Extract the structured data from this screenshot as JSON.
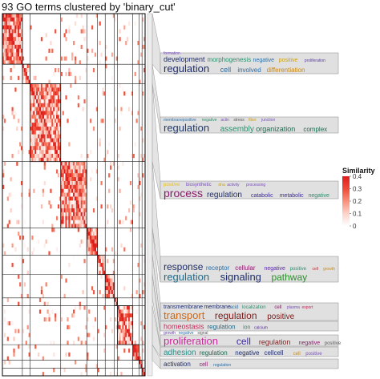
{
  "title": "93 GO terms clustered by 'binary_cut'",
  "chart_data": {
    "type": "heatmap",
    "title": "93 GO terms clustered by 'binary_cut'",
    "n_terms": 93,
    "cluster_sizes": [
      13,
      5,
      20,
      17,
      7,
      5,
      6,
      2,
      10,
      4,
      2,
      2
    ],
    "legend": {
      "title": "Similarity",
      "ticks": [
        "0.4",
        "0.3",
        "0.2",
        "0.1",
        "0"
      ],
      "range": [
        0,
        0.4
      ],
      "colors": [
        "#ffffff",
        "#fcd2c9",
        "#f8907a",
        "#ef4a36",
        "#dd1d1d"
      ],
      "placement": "right"
    },
    "cluster_density": [
      0.55,
      0.25,
      0.45,
      0.5,
      0.55,
      0.3,
      0.5,
      0.3,
      0.45,
      0.5,
      0.4,
      0.3
    ],
    "background_density": 0.05
  },
  "wordclouds": [
    {
      "lines": [
        [
          {
            "w": "formation",
            "c": "#7a4fbf",
            "s": 5
          }
        ],
        [
          {
            "w": "development",
            "c": "#1f2d6b",
            "s": 9
          },
          {
            "w": "morphogenesis",
            "c": "#2a8f6e",
            "s": 8
          },
          {
            "w": "negative",
            "c": "#2a6fa8",
            "s": 7
          },
          {
            "w": "positive",
            "c": "#c9a11a",
            "s": 7
          },
          {
            "w": "proliferation",
            "c": "#5a3aa0",
            "s": 5
          }
        ],
        [
          {
            "w": "regulation",
            "c": "#1f2d6b",
            "s": 13
          },
          {
            "w": "cell",
            "c": "#2a6fa8",
            "s": 9
          },
          {
            "w": "involved",
            "c": "#2a6fa8",
            "s": 8
          },
          {
            "w": "differentiation",
            "c": "#c98a1a",
            "s": 8
          }
        ]
      ]
    },
    {
      "lines": [
        [
          {
            "w": "membrane",
            "c": "#2a6fa8",
            "s": 5
          },
          {
            "w": "positive",
            "c": "#2a6fa8",
            "s": 5
          },
          {
            "w": "negative",
            "c": "#2a8f6e",
            "s": 5
          },
          {
            "w": "actin",
            "c": "#7a4fbf",
            "s": 5
          },
          {
            "w": "stress",
            "c": "#555555",
            "s": 5
          },
          {
            "w": "fiber",
            "c": "#c9a11a",
            "s": 5
          },
          {
            "w": "junction",
            "c": "#7a4fbf",
            "s": 5
          }
        ],
        [
          {
            "w": "regulation",
            "c": "#1f3a6b",
            "s": 13
          },
          {
            "w": "assembly",
            "c": "#2a8f6e",
            "s": 10
          },
          {
            "w": "organization",
            "c": "#1f6b4f",
            "s": 9
          },
          {
            "w": "complex",
            "c": "#1f6b4f",
            "s": 8
          }
        ]
      ]
    },
    {
      "lines": [
        [
          {
            "w": "positive",
            "c": "#e8c21a",
            "s": 6
          },
          {
            "w": "biosynthetic",
            "c": "#7a4fbf",
            "s": 6
          },
          {
            "w": "dna",
            "c": "#c9a11a",
            "s": 5
          },
          {
            "w": "activity",
            "c": "#7a4fbf",
            "s": 5
          },
          {
            "w": "processing",
            "c": "#7a4fbf",
            "s": 5
          }
        ],
        [
          {
            "w": "process",
            "c": "#8a1a6b",
            "s": 14
          },
          {
            "w": "regulation",
            "c": "#1f2d6b",
            "s": 10
          },
          {
            "w": "catabolic",
            "c": "#3a2aa0",
            "s": 7
          },
          {
            "w": "metabolic",
            "c": "#3a2aa0",
            "s": 7
          },
          {
            "w": "negative",
            "c": "#2a8f6e",
            "s": 7
          }
        ]
      ]
    },
    {
      "lines": [
        [
          {
            "w": "response",
            "c": "#1f2d6b",
            "s": 12
          },
          {
            "w": "receptor",
            "c": "#2a6fa8",
            "s": 8
          },
          {
            "w": "cellular",
            "c": "#8a1a6b",
            "s": 8
          },
          {
            "w": "negative",
            "c": "#5a2aa0",
            "s": 7
          },
          {
            "w": "positive",
            "c": "#2a8f6e",
            "s": 6
          },
          {
            "w": "cell",
            "c": "#c92a2a",
            "s": 5
          },
          {
            "w": "growth",
            "c": "#c98a1a",
            "s": 5
          }
        ],
        [
          {
            "w": "regulation",
            "c": "#1f6b8a",
            "s": 13
          },
          {
            "w": "signaling",
            "c": "#1f2d6b",
            "s": 13
          },
          {
            "w": "pathway",
            "c": "#2a8f2a",
            "s": 12
          }
        ]
      ]
    },
    {
      "lines": [
        [
          {
            "w": "transmembrane",
            "c": "#1f2d6b",
            "s": 7
          },
          {
            "w": "membrane",
            "c": "#1f2d6b",
            "s": 7
          },
          {
            "w": "acid",
            "c": "#2a6fa8",
            "s": 6
          },
          {
            "w": "localization",
            "c": "#2a8f6e",
            "s": 6
          },
          {
            "w": "cell",
            "c": "#8a1a6b",
            "s": 6
          },
          {
            "w": "plasma",
            "c": "#7a4fbf",
            "s": 5
          },
          {
            "w": "export",
            "c": "#c92a5a",
            "s": 5
          }
        ],
        [
          {
            "w": "transport",
            "c": "#c96a1a",
            "s": 13
          },
          {
            "w": "regulation",
            "c": "#7a1a1a",
            "s": 12
          },
          {
            "w": "positive",
            "c": "#7a1a1a",
            "s": 10
          }
        ]
      ]
    },
    {
      "lines": [
        [
          {
            "w": "homeostasis",
            "c": "#c92a5a",
            "s": 9
          },
          {
            "w": "regulation",
            "c": "#1f6b8a",
            "s": 8
          },
          {
            "w": "ion",
            "c": "#2a8f6e",
            "s": 7
          },
          {
            "w": "calcium",
            "c": "#5a2aa0",
            "s": 5
          }
        ]
      ]
    },
    {
      "lines": [
        [
          {
            "w": "growth",
            "c": "#5a3aa0",
            "s": 5
          },
          {
            "w": "negative",
            "c": "#2a6fa8",
            "s": 5
          },
          {
            "w": "signal",
            "c": "#555555",
            "s": 5
          }
        ],
        [
          {
            "w": "proliferation",
            "c": "#c92a9a",
            "s": 13
          },
          {
            "w": "cell",
            "c": "#3a2aa0",
            "s": 12
          },
          {
            "w": "regulation",
            "c": "#7a1a1a",
            "s": 9
          },
          {
            "w": "negative",
            "c": "#8a1a6b",
            "s": 7
          },
          {
            "w": "positive",
            "c": "#5a5a5a",
            "s": 6
          }
        ]
      ]
    },
    {
      "lines": [
        [
          {
            "w": "adhesion",
            "c": "#2a8f8a",
            "s": 10
          },
          {
            "w": "regulation",
            "c": "#1f6b4f",
            "s": 8
          },
          {
            "w": "negative",
            "c": "#1f2d6b",
            "s": 8
          },
          {
            "w": "cellcell",
            "c": "#1f2d6b",
            "s": 8
          },
          {
            "w": "cell",
            "c": "#c98a1a",
            "s": 6
          },
          {
            "w": "positive",
            "c": "#7a4fbf",
            "s": 6
          }
        ]
      ]
    },
    {
      "lines": [
        [
          {
            "w": "activation",
            "c": "#1f2d6b",
            "s": 8
          },
          {
            "w": "cell",
            "c": "#8a1a6b",
            "s": 7
          },
          {
            "w": "regulation",
            "c": "#2a6fa8",
            "s": 5
          }
        ]
      ]
    }
  ]
}
